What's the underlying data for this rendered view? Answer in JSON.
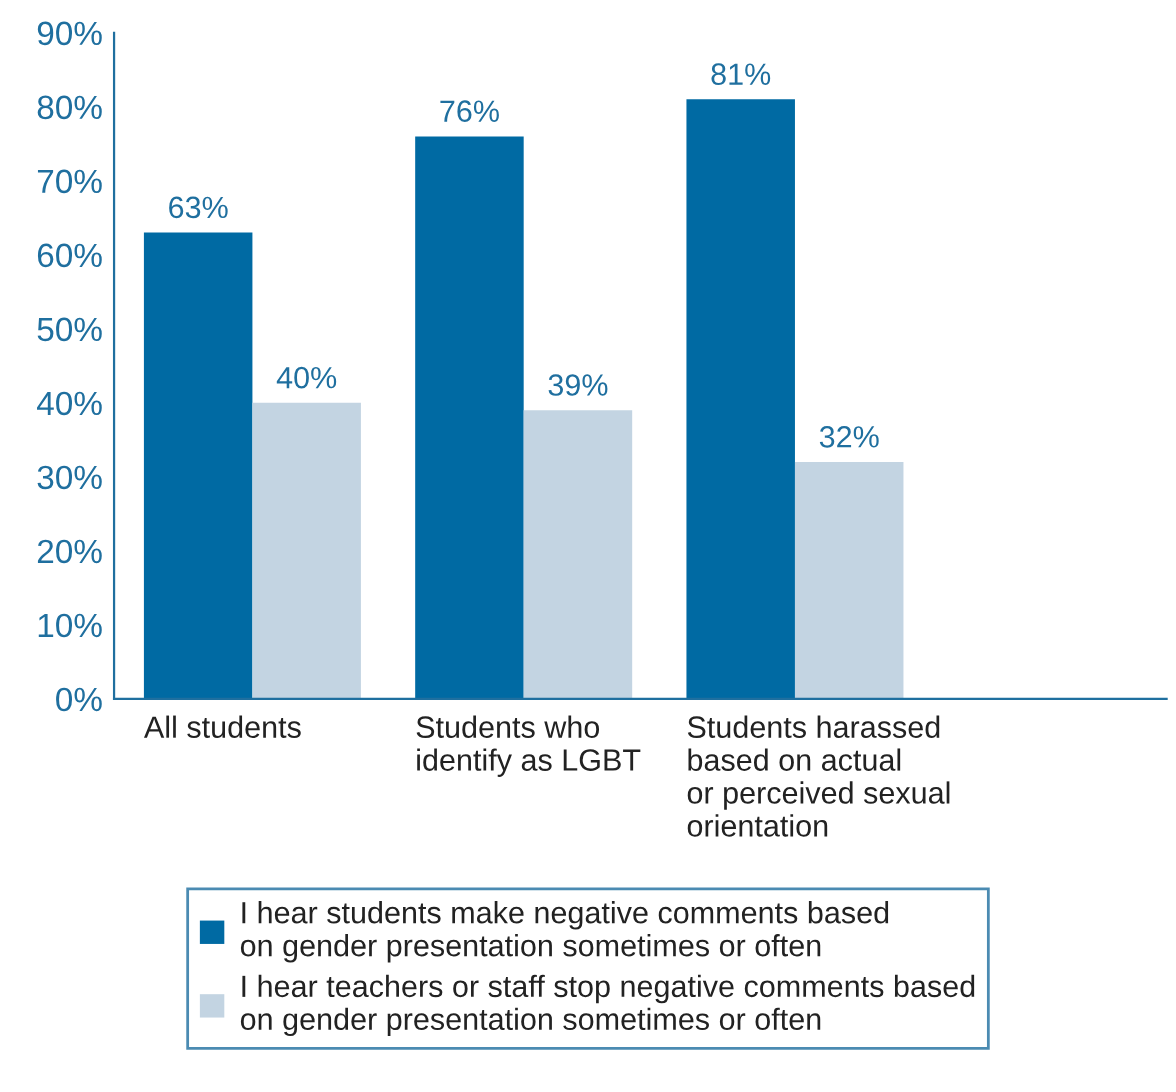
{
  "chart_data": {
    "type": "bar",
    "categories": [
      "All students",
      "Students who\nidentify as LGBT",
      "Students harassed\nbased on actual\nor perceived sexual\norientation"
    ],
    "series": [
      {
        "name": "I hear students make negative comments based\non gender presentation sometimes or often",
        "color": "#006aa3",
        "values": [
          63,
          76,
          81
        ]
      },
      {
        "name": "I hear teachers or staff stop negative comments based\non gender presentation sometimes or often",
        "color": "#c3d4e2",
        "values": [
          40,
          39,
          32
        ]
      }
    ],
    "ylim": [
      0,
      90
    ],
    "yticks": [
      {
        "value": 0,
        "label": "0%"
      },
      {
        "value": 10,
        "label": "10%"
      },
      {
        "value": 20,
        "label": "20%"
      },
      {
        "value": 30,
        "label": "30%"
      },
      {
        "value": 40,
        "label": "40%"
      },
      {
        "value": 50,
        "label": "50%"
      },
      {
        "value": 60,
        "label": "60%"
      },
      {
        "value": 70,
        "label": "70%"
      },
      {
        "value": 80,
        "label": "80%"
      },
      {
        "value": 90,
        "label": "90%"
      }
    ],
    "value_labels": [
      [
        "63%",
        "76%",
        "81%"
      ],
      [
        "40%",
        "39%",
        "32%"
      ]
    ],
    "grid": false,
    "legend": "bottom"
  }
}
